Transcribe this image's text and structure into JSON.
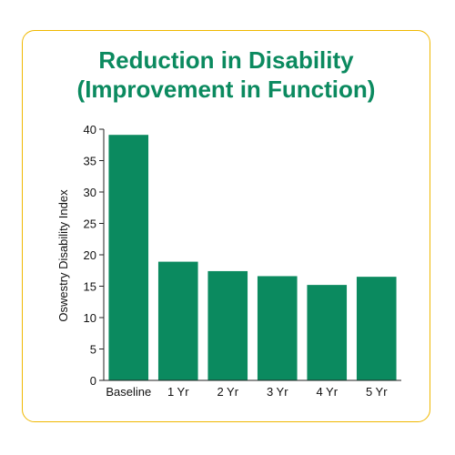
{
  "chart_data": {
    "type": "bar",
    "title_line1": "Reduction in Disability",
    "title_line2": "(Improvement in Function)",
    "xlabel": "",
    "ylabel": "Oswestry Disability Index",
    "categories": [
      "Baseline",
      "1 Yr",
      "2 Yr",
      "3 Yr",
      "4 Yr",
      "5 Yr"
    ],
    "values": [
      39.1,
      18.9,
      17.4,
      16.6,
      15.2,
      16.5
    ],
    "ylim": [
      0,
      40
    ],
    "yticks": [
      0,
      5,
      10,
      15,
      20,
      25,
      30,
      35,
      40
    ],
    "grid": false,
    "legend": "none",
    "bar_color": "#0b8a5f",
    "title_color": "#0b8a5f",
    "frame_color": "#f0b800"
  }
}
